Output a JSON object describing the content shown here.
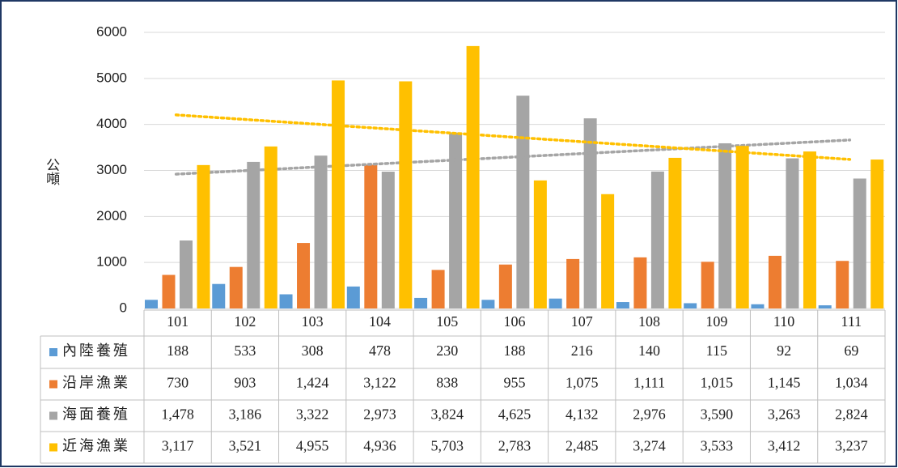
{
  "chart_data": {
    "type": "bar",
    "y_label": "公噸",
    "categories": [
      "101",
      "102",
      "103",
      "104",
      "105",
      "106",
      "107",
      "108",
      "109",
      "110",
      "111"
    ],
    "ylim": [
      0,
      6000
    ],
    "yticks": [
      0,
      1000,
      2000,
      3000,
      4000,
      5000,
      6000
    ],
    "grid": true,
    "series": [
      {
        "name": "內陸養殖",
        "color": "#5b9bd5",
        "values": [
          188,
          533,
          308,
          478,
          230,
          188,
          216,
          140,
          115,
          92,
          69
        ]
      },
      {
        "name": "沿岸漁業",
        "color": "#ed7d31",
        "values": [
          730,
          903,
          1424,
          3122,
          838,
          955,
          1075,
          1111,
          1015,
          1145,
          1034
        ],
        "value_labels": [
          "730",
          "903",
          "1,424",
          "3,122",
          "838",
          "955",
          "1,075",
          "1,111",
          "1,015",
          "1,145",
          "1,034"
        ]
      },
      {
        "name": "海面養殖",
        "color": "#a5a5a5",
        "trendline": true,
        "values": [
          1478,
          3186,
          3322,
          2973,
          3824,
          4625,
          4132,
          2976,
          3590,
          3263,
          2824
        ],
        "value_labels": [
          "1,478",
          "3,186",
          "3,322",
          "2,973",
          "3,824",
          "4,625",
          "4,132",
          "2,976",
          "3,590",
          "3,263",
          "2,824"
        ]
      },
      {
        "name": "近海漁業",
        "color": "#ffc000",
        "trendline": true,
        "values": [
          3117,
          3521,
          4955,
          4936,
          5703,
          2783,
          2485,
          3274,
          3533,
          3412,
          3237
        ],
        "value_labels": [
          "3,117",
          "3,521",
          "4,955",
          "4,936",
          "5,703",
          "2,783",
          "2,485",
          "3,274",
          "3,533",
          "3,412",
          "3,237"
        ]
      }
    ]
  }
}
